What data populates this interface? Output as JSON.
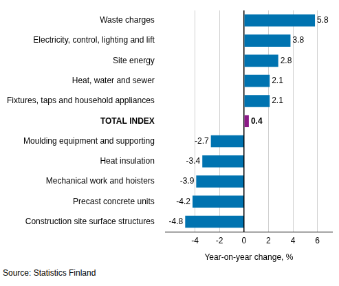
{
  "chart_data": {
    "type": "bar",
    "orientation": "horizontal",
    "categories": [
      "Waste charges",
      "Electricity, control, lighting and lift",
      "Site energy",
      "Heat, water and sewer",
      "Fixtures, taps and household appliances",
      "TOTAL INDEX",
      "Moulding equipment and supporting",
      "Heat insulation",
      "Mechanical work and hoisters",
      "Precast concrete units",
      "Construction site surface structures"
    ],
    "values": [
      5.8,
      3.8,
      2.8,
      2.1,
      2.1,
      0.4,
      -2.7,
      -3.4,
      -3.9,
      -4.2,
      -4.8
    ],
    "colors": [
      "#0073b0",
      "#0073b0",
      "#0073b0",
      "#0073b0",
      "#0073b0",
      "#8b1a87",
      "#0073b0",
      "#0073b0",
      "#0073b0",
      "#0073b0",
      "#0073b0"
    ],
    "x_label": "Year-on-year change, %",
    "xlim": [
      -6.4,
      7.2
    ],
    "xticks": [
      -4,
      -2,
      0,
      2,
      4,
      6
    ],
    "grid": true,
    "data_labels": true,
    "source": "Source: Statistics Finland"
  }
}
